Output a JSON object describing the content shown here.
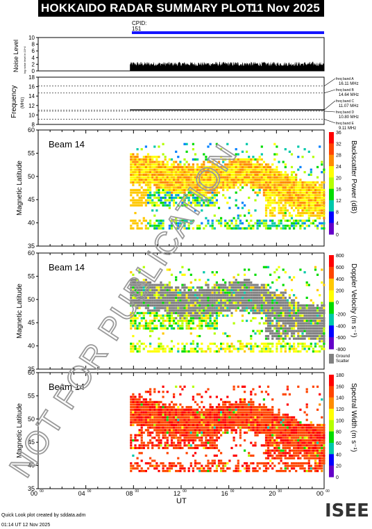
{
  "header": {
    "title": "HOKKAIDO RADAR SUMMARY PLOT",
    "date": "11 Nov 2025"
  },
  "cpid": {
    "label": "CPID:",
    "value": "151"
  },
  "noise_panel": {
    "ylabel": "Noise Level",
    "sublabel": "log noise level in 10^4",
    "yticks": [
      "0",
      "2",
      "4",
      "6",
      "8",
      "10"
    ]
  },
  "freq_panel": {
    "ylabel": "Frequency",
    "unit": "(MHz)",
    "yticks": [
      "8",
      "10",
      "12",
      "14",
      "16",
      "18"
    ],
    "bands": [
      {
        "label": "freq band A",
        "value": "16.11 MHz",
        "freq": 16.11
      },
      {
        "label": "freq band B",
        "value": "14.64 MHz",
        "freq": 14.64
      },
      {
        "label": "freq band C",
        "value": "11.07 MHz",
        "freq": 11.07
      },
      {
        "label": "freq band D",
        "value": "10.80 MHz",
        "freq": 10.8
      },
      {
        "label": "freq band E",
        "value": "9.11 MHz",
        "freq": 9.11
      }
    ]
  },
  "panels": [
    {
      "beam": "Beam 14",
      "ylabel": "Magnetic Latitude",
      "yticks": [
        "35",
        "40",
        "45",
        "50",
        "55",
        "60"
      ],
      "cbar_title": "Backscatter Power (dB)",
      "cbar_ticks": [
        "0",
        "4",
        "8",
        "12",
        "16",
        "20",
        "24",
        "28",
        "32",
        "36"
      ]
    },
    {
      "beam": "Beam 14",
      "ylabel": "Magnetic Latitude",
      "yticks": [
        "35",
        "40",
        "45",
        "50",
        "55",
        "60"
      ],
      "cbar_title": "Doppler Velocity (m s⁻¹)",
      "cbar_ticks": [
        "-800",
        "-600",
        "-400",
        "-200",
        "0",
        "200",
        "400",
        "600",
        "800"
      ],
      "ground_label": "Ground",
      "scatter_label": "Scatter"
    },
    {
      "beam": "Beam 14",
      "ylabel": "Magnetic Latitude",
      "yticks": [
        "35",
        "40",
        "45",
        "50",
        "55",
        "60"
      ],
      "cbar_title": "Spectral Width (m s⁻¹)",
      "cbar_ticks": [
        "0",
        "20",
        "40",
        "60",
        "80",
        "100",
        "120",
        "140",
        "160",
        "180"
      ]
    }
  ],
  "xaxis": {
    "label": "UT",
    "ticks": [
      "00",
      "04",
      "08",
      "12",
      "16",
      "20",
      "00"
    ],
    "tick_sup": "00"
  },
  "footer": {
    "line1": "Quick Look plot created by sddata.adm",
    "line2": "01:14 UT 12 Nov 2025"
  },
  "logo": "ISEE",
  "watermark": "NOT FOR PUBLICATION",
  "colors": {
    "header_bg": "#000000",
    "cpid_bar": "#1515ff",
    "ground_scatter": "#808080"
  },
  "chart_data": [
    {
      "type": "bar",
      "title": "Noise Level",
      "x_range_ut_hours": [
        0,
        24
      ],
      "data_start_ut_hours": 7.7,
      "typical_value": 2.0,
      "ylim": [
        0,
        10
      ]
    },
    {
      "type": "line",
      "title": "Frequency",
      "x_range_ut_hours": [
        0,
        24
      ],
      "ylim": [
        8,
        18
      ],
      "series": [
        {
          "name": "frequency",
          "x": [
            7.7,
            24
          ],
          "values": [
            11.07,
            11.07
          ]
        }
      ]
    },
    {
      "type": "heatmap",
      "title": "Backscatter Power (dB)",
      "x_range_ut_hours": [
        0,
        24
      ],
      "ylim": [
        35,
        60
      ],
      "clim": [
        0,
        36
      ]
    },
    {
      "type": "heatmap",
      "title": "Doppler Velocity (m s-1)",
      "x_range_ut_hours": [
        0,
        24
      ],
      "ylim": [
        35,
        60
      ],
      "clim": [
        -800,
        800
      ]
    },
    {
      "type": "heatmap",
      "title": "Spectral Width (m s-1)",
      "x_range_ut_hours": [
        0,
        24
      ],
      "ylim": [
        35,
        60
      ],
      "clim": [
        0,
        180
      ]
    }
  ]
}
